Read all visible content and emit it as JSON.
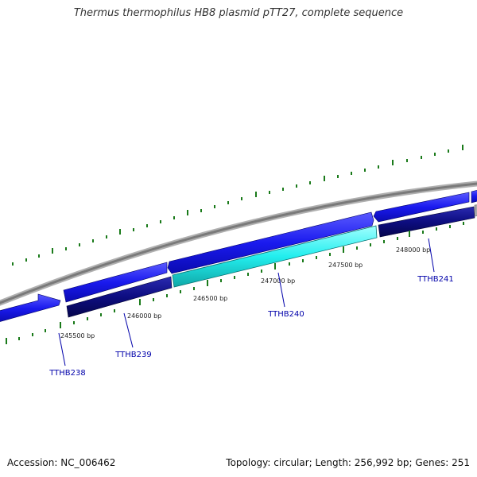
{
  "title": "Thermus thermophilus HB8 plasmid pTT27, complete sequence",
  "footer": {
    "accession_label": "Accession:",
    "accession": "NC_006462",
    "summary": "Topology: circular; Length: 256,992 bp; Genes: 251"
  },
  "colors": {
    "backbone": "#8a8a8a",
    "tick": "#1a7a1a",
    "forward_gene": "#1a1aee",
    "reverse_gene": "#0d0d80",
    "highlight_gene": "#22eeee",
    "gene_label": "#0000aa"
  },
  "ruler_labels": [
    "245500 bp",
    "246000 bp",
    "246500 bp",
    "247000 bp",
    "247500 bp",
    "248000 bp"
  ],
  "gene_labels": [
    "TTHB238",
    "TTHB239",
    "TTHB240",
    "TTHB241"
  ]
}
